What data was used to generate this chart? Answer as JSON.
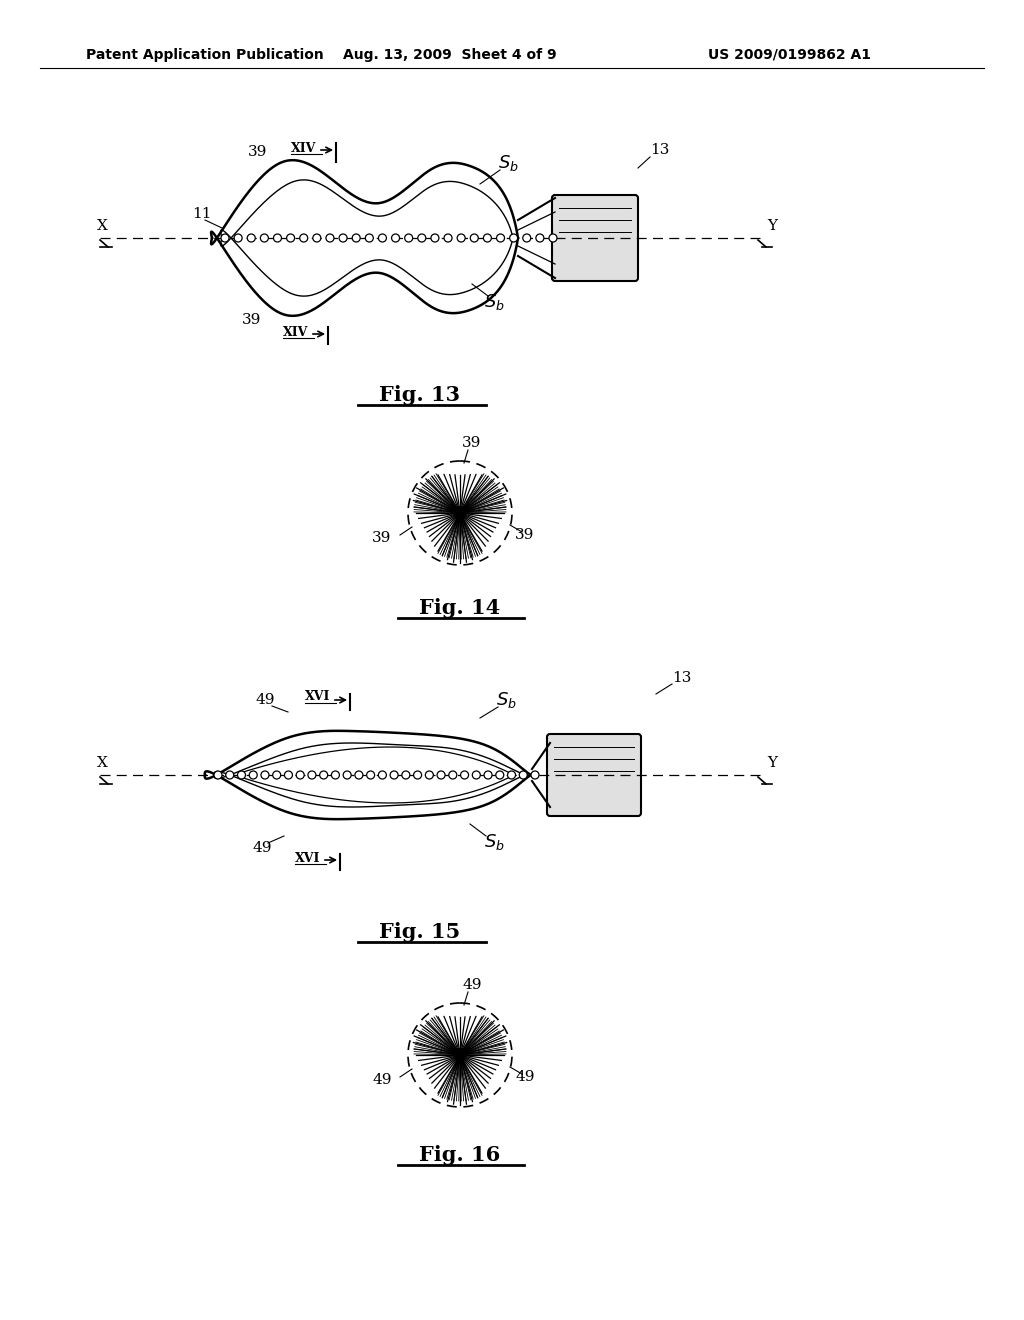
{
  "bg_color": "#ffffff",
  "header_left": "Patent Application Publication",
  "header_mid": "Aug. 13, 2009  Sheet 4 of 9",
  "header_right": "US 2009/0199862 A1",
  "fig13_title": "Fig. 13",
  "fig14_title": "Fig. 14",
  "fig15_title": "Fig. 15",
  "fig16_title": "Fig. 16",
  "line_color": "#000000",
  "bg_color_handle": "#d8d8d8"
}
